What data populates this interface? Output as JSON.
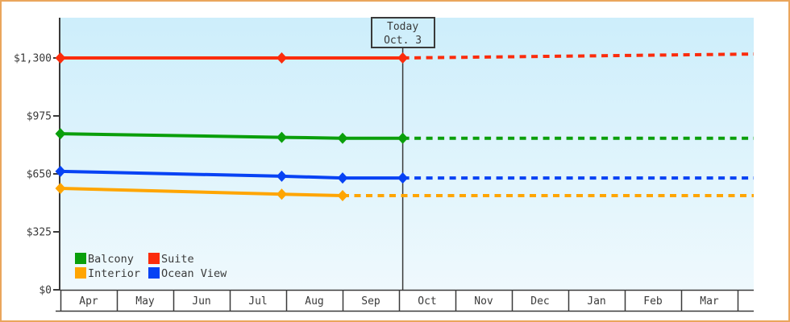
{
  "frame": {
    "border_color": "#eaa65c",
    "background_color": "#ffffff",
    "text_color": "#3a3a3a",
    "axis_color": "#3a3a3a",
    "plot_bg_top": "#cdeefb",
    "plot_bg_bottom": "#eff9fd"
  },
  "chart_data": {
    "type": "line",
    "title": "",
    "x_axis": {
      "style": "month-band",
      "months": [
        "Apr",
        "May",
        "Jun",
        "Jul",
        "Aug",
        "Sep",
        "Oct",
        "Nov",
        "Dec",
        "Jan",
        "Feb",
        "Mar"
      ]
    },
    "y_axis": {
      "ylim": [
        0,
        1300
      ],
      "ticks": [
        {
          "label": "$0",
          "value": 0
        },
        {
          "label": "$325",
          "value": 325
        },
        {
          "label": "$650",
          "value": 650
        },
        {
          "label": "$975",
          "value": 975
        },
        {
          "label": "$1,300",
          "value": 1300
        }
      ]
    },
    "today_marker": {
      "line1": "Today",
      "line2": "Oct. 3",
      "month": "Oct",
      "day": 3
    },
    "series": [
      {
        "name": "Suite",
        "color": "#fb2c0c",
        "history": [
          {
            "month": "Apr",
            "day": 1,
            "price": 1300
          },
          {
            "month": "Jul",
            "day": 29,
            "price": 1300
          },
          {
            "month": "Oct",
            "day": 3,
            "price": 1300
          }
        ],
        "projection_end_price": 1322
      },
      {
        "name": "Balcony",
        "color": "#0a9f0b",
        "history": [
          {
            "month": "Apr",
            "day": 1,
            "price": 875
          },
          {
            "month": "Jul",
            "day": 29,
            "price": 855
          },
          {
            "month": "Sep",
            "day": 1,
            "price": 850
          },
          {
            "month": "Oct",
            "day": 3,
            "price": 850
          }
        ],
        "projection_end_price": 850
      },
      {
        "name": "Ocean View",
        "color": "#0742f4",
        "history": [
          {
            "month": "Apr",
            "day": 1,
            "price": 664
          },
          {
            "month": "Jul",
            "day": 29,
            "price": 637
          },
          {
            "month": "Sep",
            "day": 1,
            "price": 627
          },
          {
            "month": "Oct",
            "day": 3,
            "price": 627
          }
        ],
        "projection_end_price": 627
      },
      {
        "name": "Interior",
        "color": "#ffa501",
        "history": [
          {
            "month": "Apr",
            "day": 1,
            "price": 569
          },
          {
            "month": "Jul",
            "day": 29,
            "price": 536
          },
          {
            "month": "Sep",
            "day": 1,
            "price": 528
          }
        ],
        "projection_end_price": 528
      }
    ],
    "legend": {
      "rows": [
        [
          "Balcony",
          "Suite"
        ],
        [
          "Interior",
          "Ocean View"
        ]
      ]
    }
  }
}
